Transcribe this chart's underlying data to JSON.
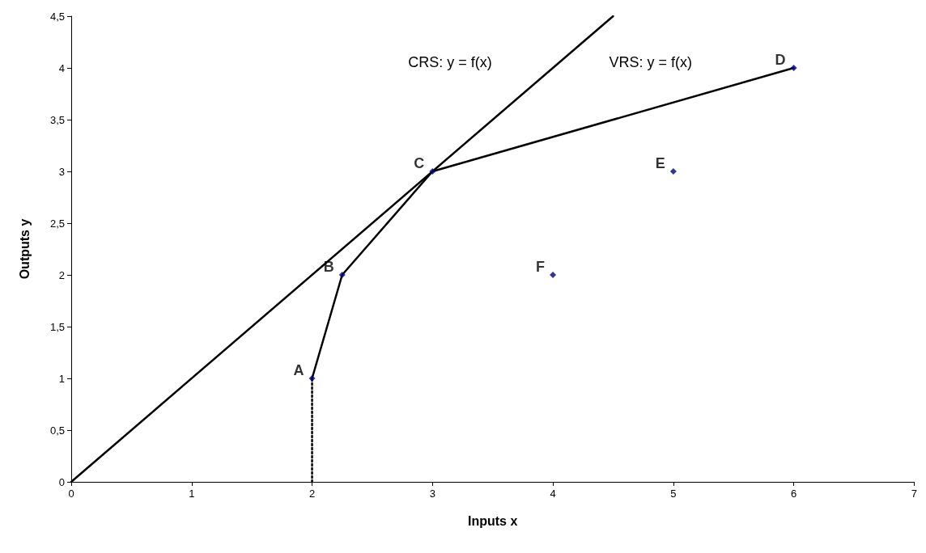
{
  "chart_data": {
    "type": "line",
    "xlabel": "Inputs x",
    "ylabel": "Outputs y",
    "xlim": [
      0,
      7
    ],
    "xticks": [
      0,
      1,
      2,
      3,
      4,
      5,
      6,
      7
    ],
    "ylim": [
      0,
      4.5
    ],
    "yticks": [
      0,
      {
        "value": 0.5,
        "label": "0,5"
      },
      1,
      {
        "value": 1.5,
        "label": "1,5"
      },
      2,
      {
        "value": 2.5,
        "label": "2,5"
      },
      3,
      {
        "value": 3.5,
        "label": "3,5"
      },
      4,
      {
        "value": 4.5,
        "label": "4,5"
      }
    ],
    "grid": false,
    "series": [
      {
        "color": "#000000",
        "marker": "none",
        "line_style": "solid",
        "x": [
          0,
          4.5
        ],
        "values": [
          0,
          4.5
        ]
      },
      {
        "color": "#000000",
        "marker": "none",
        "line_style": "solid",
        "x": [
          2,
          2.25,
          3,
          6
        ],
        "values": [
          1,
          2,
          3,
          4
        ]
      },
      {
        "color": "#000000",
        "marker": "none",
        "line_style": "dotted",
        "x": [
          2,
          2
        ],
        "values": [
          0,
          1
        ]
      },
      {
        "type": "scatter",
        "color": "#000080",
        "marker": "diamond",
        "x": [
          2,
          2.25,
          3,
          6,
          5,
          4
        ],
        "values": [
          1,
          2,
          3,
          4,
          3,
          2
        ],
        "value_labels": [
          "A",
          "B",
          "C",
          "D",
          "E",
          "F"
        ]
      }
    ],
    "annotations": [
      "CRS: y = f(x)",
      "VRS: y = f(x)"
    ]
  }
}
